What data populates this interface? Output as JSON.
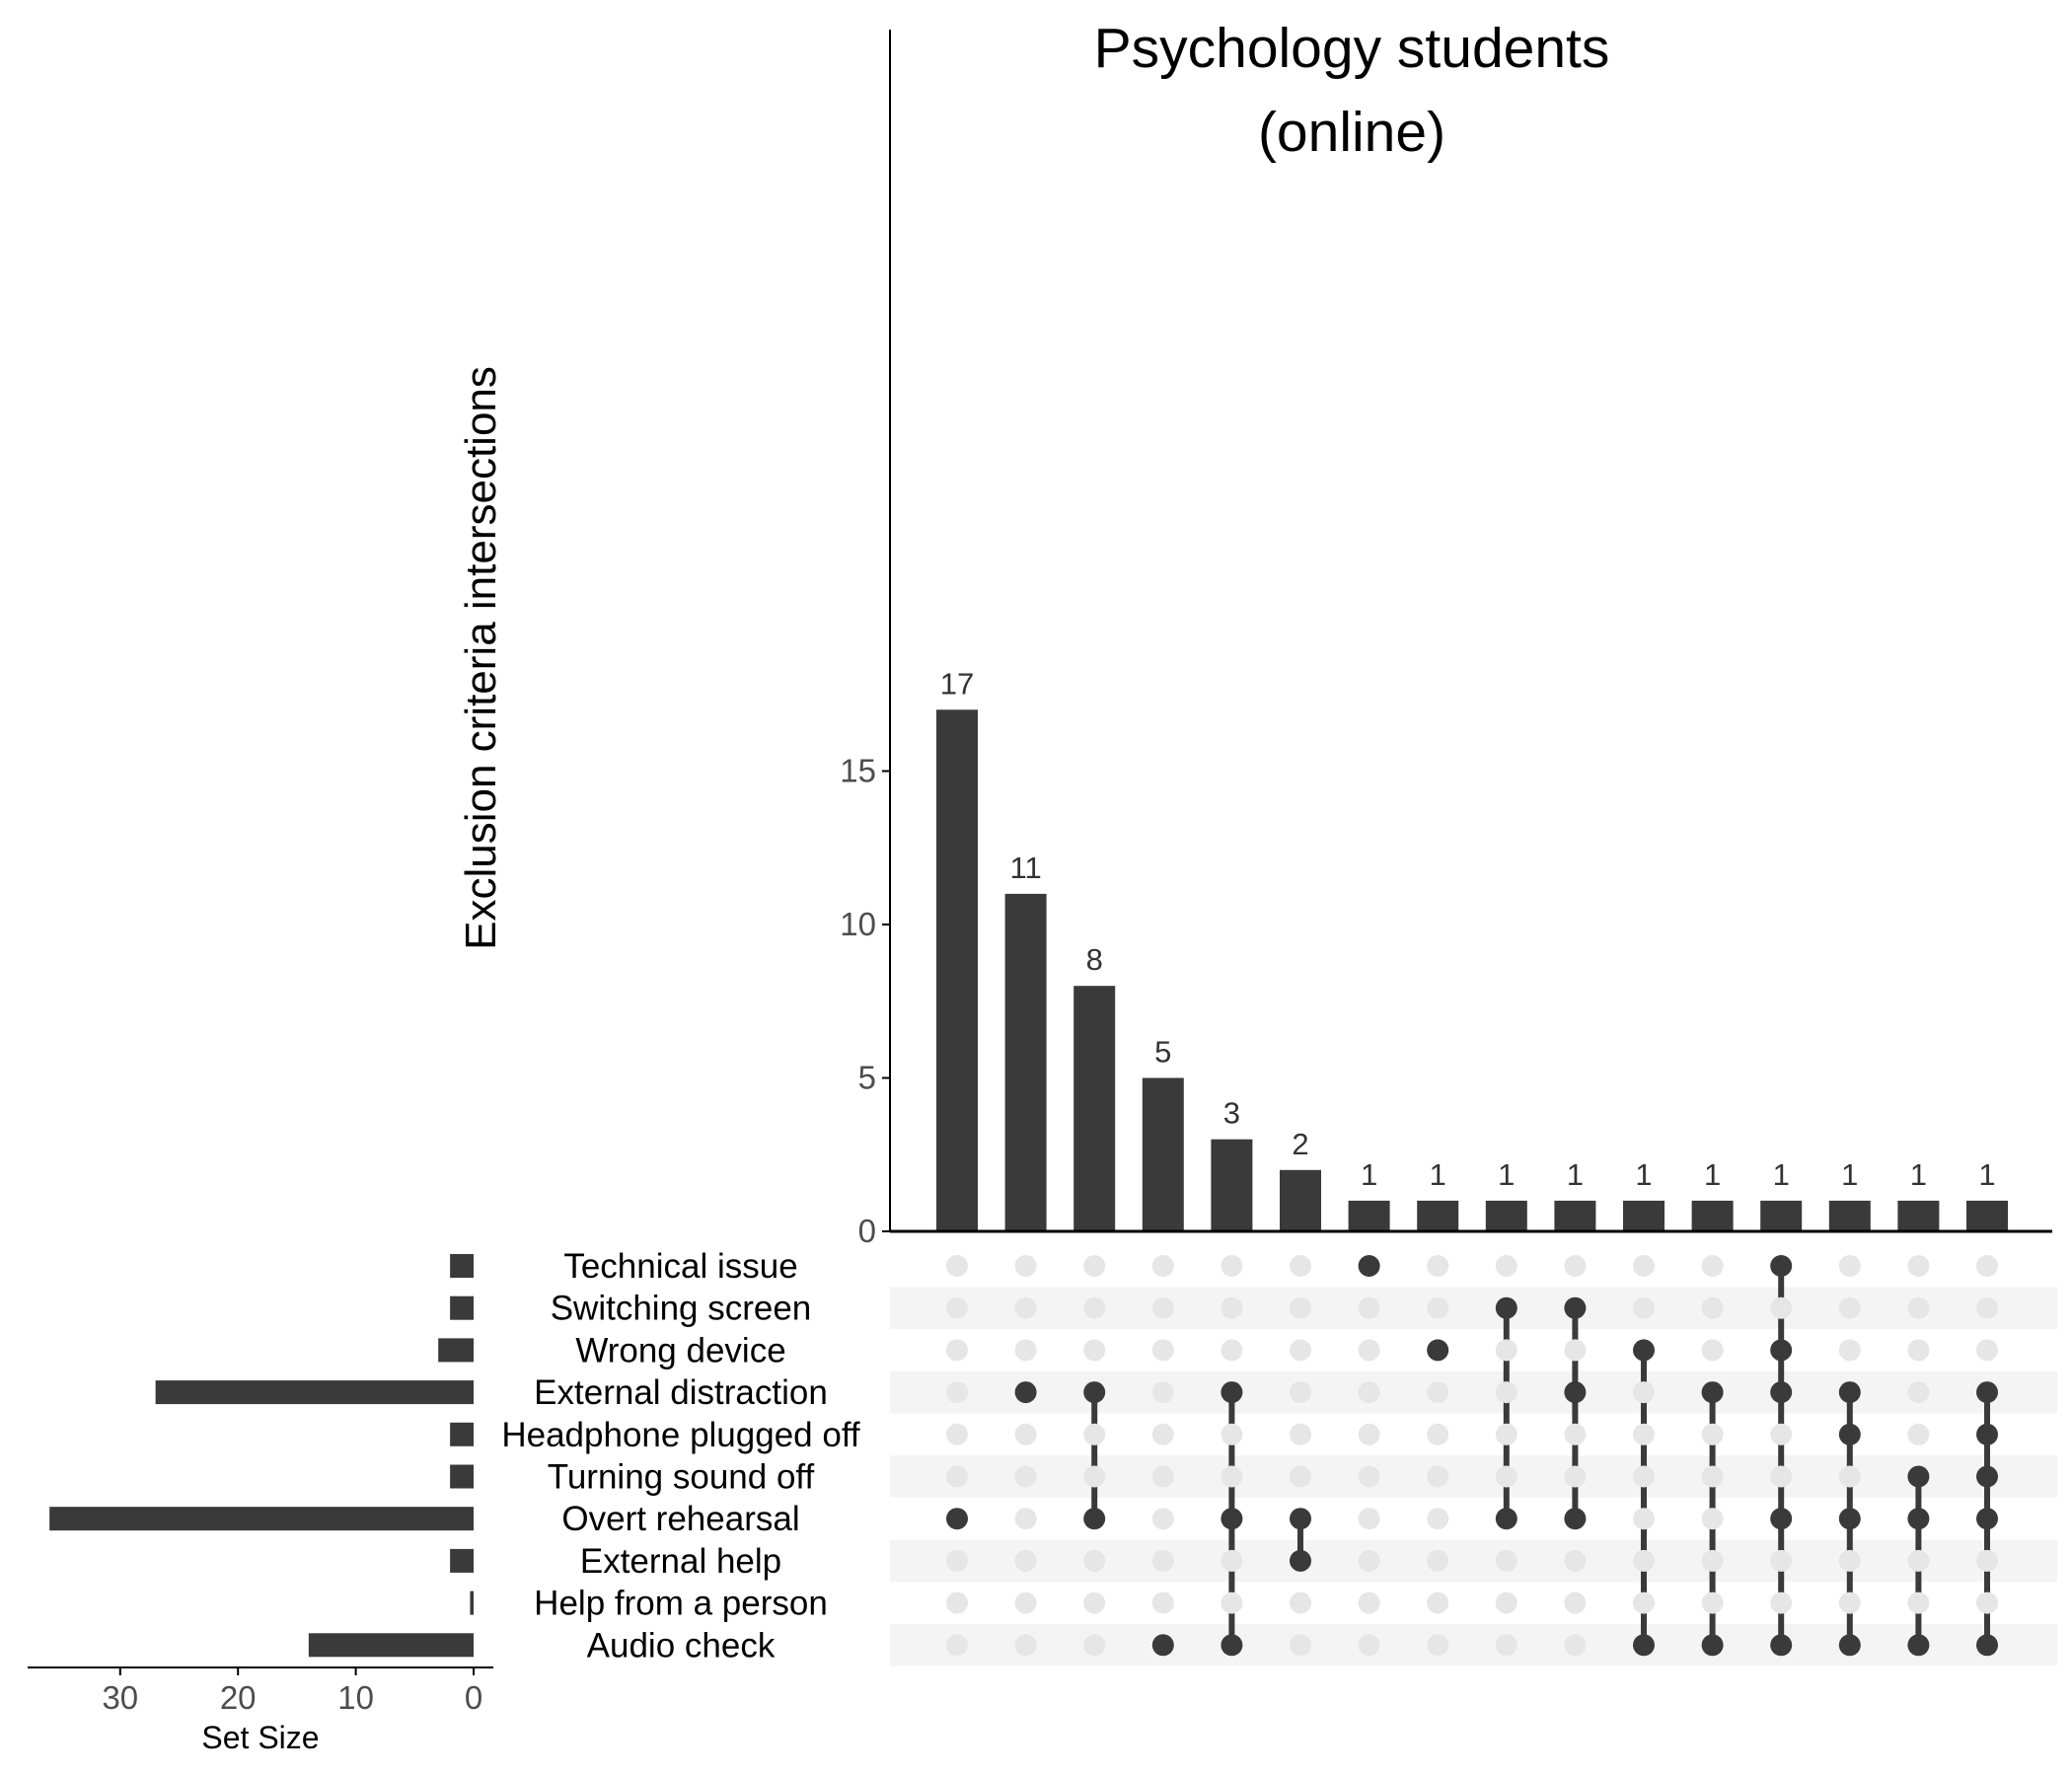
{
  "chart_data": {
    "type": "bar",
    "title_lines": [
      "Psychology students",
      "(online)"
    ],
    "ylabel": "Exclusion criteria intersections",
    "ylim": [
      0,
      19.5
    ],
    "yticks": [
      0,
      5,
      10,
      15
    ],
    "sets": [
      "Technical issue",
      "Switching screen",
      "Wrong device",
      "External distraction",
      "Headphone plugged off",
      "Turning sound off",
      "Overt rehearsal",
      "External help",
      "Help from a person",
      "Audio check"
    ],
    "set_sizes": [
      2,
      2,
      3,
      27,
      2,
      2,
      36,
      2,
      0.3,
      14
    ],
    "set_size_title": "Set Size",
    "set_size_ticks": [
      30,
      20,
      10,
      0
    ],
    "set_size_lim": [
      0,
      37.5
    ],
    "intersections": [
      {
        "value": 17,
        "sets": [
          "Overt rehearsal"
        ]
      },
      {
        "value": 11,
        "sets": [
          "External distraction"
        ]
      },
      {
        "value": 8,
        "sets": [
          "External distraction",
          "Overt rehearsal"
        ]
      },
      {
        "value": 5,
        "sets": [
          "Audio check"
        ]
      },
      {
        "value": 3,
        "sets": [
          "External distraction",
          "Overt rehearsal",
          "Audio check"
        ]
      },
      {
        "value": 2,
        "sets": [
          "Overt rehearsal",
          "External help"
        ]
      },
      {
        "value": 1,
        "sets": [
          "Technical issue"
        ]
      },
      {
        "value": 1,
        "sets": [
          "Wrong device"
        ]
      },
      {
        "value": 1,
        "sets": [
          "Switching screen",
          "Overt rehearsal"
        ]
      },
      {
        "value": 1,
        "sets": [
          "Switching screen",
          "External distraction",
          "Overt rehearsal"
        ]
      },
      {
        "value": 1,
        "sets": [
          "Wrong device",
          "Audio check"
        ]
      },
      {
        "value": 1,
        "sets": [
          "External distraction",
          "Audio check"
        ]
      },
      {
        "value": 1,
        "sets": [
          "Technical issue",
          "Wrong device",
          "External distraction",
          "Overt rehearsal",
          "Audio check"
        ]
      },
      {
        "value": 1,
        "sets": [
          "External distraction",
          "Headphone plugged off",
          "Overt rehearsal",
          "Audio check"
        ]
      },
      {
        "value": 1,
        "sets": [
          "Turning sound off",
          "Overt rehearsal",
          "Audio check"
        ]
      },
      {
        "value": 1,
        "sets": [
          "External distraction",
          "Headphone plugged off",
          "Turning sound off",
          "Overt rehearsal",
          "Audio check"
        ]
      }
    ],
    "colors": {
      "bar": "#3a3a3a",
      "dot_active": "#3a3a3a",
      "dot_inactive": "#e6e6e6",
      "stripe": "#f4f4f4",
      "axis": "#000000"
    }
  }
}
